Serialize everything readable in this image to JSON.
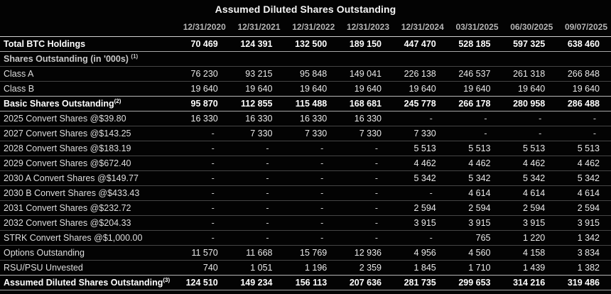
{
  "title": "Assumed Diluted Shares Outstanding",
  "chart_data": {
    "type": "table",
    "title": "Assumed Diluted Shares Outstanding",
    "columns": [
      "12/31/2020",
      "12/31/2021",
      "12/31/2022",
      "12/31/2023",
      "12/31/2024",
      "03/31/2025",
      "06/30/2025",
      "09/07/2025"
    ],
    "rows": [
      {
        "label": "Total BTC Holdings",
        "sup": "",
        "style": "bold",
        "values": [
          "70 469",
          "124 391",
          "132 500",
          "189 150",
          "447 470",
          "528 185",
          "597 325",
          "638 460"
        ]
      },
      {
        "label": "Shares Outstanding (in '000s)",
        "sup": "(1)",
        "style": "section",
        "values": [
          "",
          "",
          "",
          "",
          "",
          "",
          "",
          ""
        ]
      },
      {
        "label": "Class A",
        "sup": "",
        "style": "normal",
        "values": [
          "76 230",
          "93 215",
          "95 848",
          "149 041",
          "226 138",
          "246 537",
          "261 318",
          "266 848"
        ]
      },
      {
        "label": "Class B",
        "sup": "",
        "style": "normal",
        "values": [
          "19 640",
          "19 640",
          "19 640",
          "19 640",
          "19 640",
          "19 640",
          "19 640",
          "19 640"
        ]
      },
      {
        "label": "Basic Shares Outstanding",
        "sup": "(2)",
        "style": "bold",
        "values": [
          "95 870",
          "112 855",
          "115 488",
          "168 681",
          "245 778",
          "266 178",
          "280 958",
          "286 488"
        ]
      },
      {
        "label": "2025 Convert Shares @$39.80",
        "sup": "",
        "style": "normal",
        "values": [
          "16 330",
          "16 330",
          "16 330",
          "16 330",
          "-",
          "-",
          "-",
          "-"
        ]
      },
      {
        "label": "2027 Convert Shares @$143.25",
        "sup": "",
        "style": "normal",
        "values": [
          "-",
          "7 330",
          "7 330",
          "7 330",
          "7 330",
          "-",
          "-",
          "-"
        ]
      },
      {
        "label": "2028 Convert Shares @$183.19",
        "sup": "",
        "style": "normal",
        "values": [
          "-",
          "-",
          "-",
          "-",
          "5 513",
          "5 513",
          "5 513",
          "5 513"
        ]
      },
      {
        "label": "2029 Convert Shares @$672.40",
        "sup": "",
        "style": "normal",
        "values": [
          "-",
          "-",
          "-",
          "-",
          "4 462",
          "4 462",
          "4 462",
          "4 462"
        ]
      },
      {
        "label": "2030 A Convert Shares @$149.77",
        "sup": "",
        "style": "normal",
        "values": [
          "-",
          "-",
          "-",
          "-",
          "5 342",
          "5 342",
          "5 342",
          "5 342"
        ]
      },
      {
        "label": "2030 B Convert Shares @$433.43",
        "sup": "",
        "style": "normal",
        "values": [
          "-",
          "-",
          "-",
          "-",
          "-",
          "4 614",
          "4 614",
          "4 614"
        ]
      },
      {
        "label": "2031 Convert Shares @$232.72",
        "sup": "",
        "style": "normal",
        "values": [
          "-",
          "-",
          "-",
          "-",
          "2 594",
          "2 594",
          "2 594",
          "2 594"
        ]
      },
      {
        "label": "2032 Convert Shares @$204.33",
        "sup": "",
        "style": "normal",
        "values": [
          "-",
          "-",
          "-",
          "-",
          "3 915",
          "3 915",
          "3 915",
          "3 915"
        ]
      },
      {
        "label": "STRK Convert Shares @$1,000.00",
        "sup": "",
        "style": "normal",
        "values": [
          "-",
          "-",
          "-",
          "-",
          "-",
          "765",
          "1 220",
          "1 342"
        ]
      },
      {
        "label": "Options Outstanding",
        "sup": "",
        "style": "normal",
        "values": [
          "11 570",
          "11 668",
          "15 769",
          "12 936",
          "4 956",
          "4 560",
          "4 158",
          "3 834"
        ]
      },
      {
        "label": "RSU/PSU Unvested",
        "sup": "",
        "style": "normal",
        "values": [
          "740",
          "1 051",
          "1 196",
          "2 359",
          "1 845",
          "1 710",
          "1 439",
          "1 382"
        ]
      },
      {
        "label": "Assumed Diluted Shares Outstanding",
        "sup": "(3)",
        "style": "bold",
        "values": [
          "124 510",
          "149 234",
          "156 113",
          "207 636",
          "281 735",
          "299 653",
          "314 216",
          "319 486"
        ]
      }
    ]
  }
}
